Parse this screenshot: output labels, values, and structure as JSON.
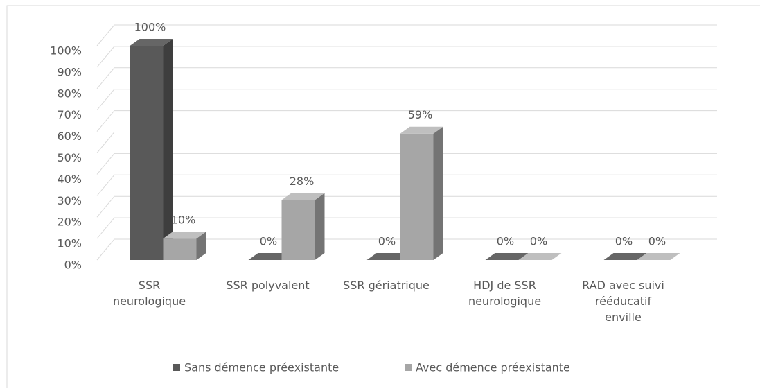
{
  "chart_data": {
    "type": "bar3d",
    "categories": [
      "SSR\nneurologique",
      "SSR polyvalent",
      "SSR gériatrique",
      "HDJ de SSR\nneurologique",
      "RAD avec suivi\nrééducatif\nenville"
    ],
    "series": [
      {
        "name": "Sans démence préexistante",
        "color": "#595959",
        "values": [
          100,
          0,
          0,
          0,
          0
        ],
        "value_labels": [
          "100%",
          "0%",
          "0%",
          "0%",
          "0%"
        ]
      },
      {
        "name": "Avec démence préexistante",
        "color": "#a6a6a6",
        "values": [
          10,
          28,
          59,
          0,
          0
        ],
        "value_labels": [
          "10%",
          "28%",
          "59%",
          "0%",
          "0%"
        ]
      }
    ],
    "ylim": [
      0,
      100
    ],
    "yticks": [
      {
        "value": 0,
        "label": "0%"
      },
      {
        "value": 10,
        "label": "10%"
      },
      {
        "value": 20,
        "label": "20%"
      },
      {
        "value": 30,
        "label": "30%"
      },
      {
        "value": 40,
        "label": "40%"
      },
      {
        "value": 50,
        "label": "50%"
      },
      {
        "value": 60,
        "label": "60%"
      },
      {
        "value": 70,
        "label": "70%"
      },
      {
        "value": 80,
        "label": "80%"
      },
      {
        "value": 90,
        "label": "90%"
      },
      {
        "value": 100,
        "label": "100%"
      }
    ],
    "grid": true,
    "legend": "bottom"
  }
}
